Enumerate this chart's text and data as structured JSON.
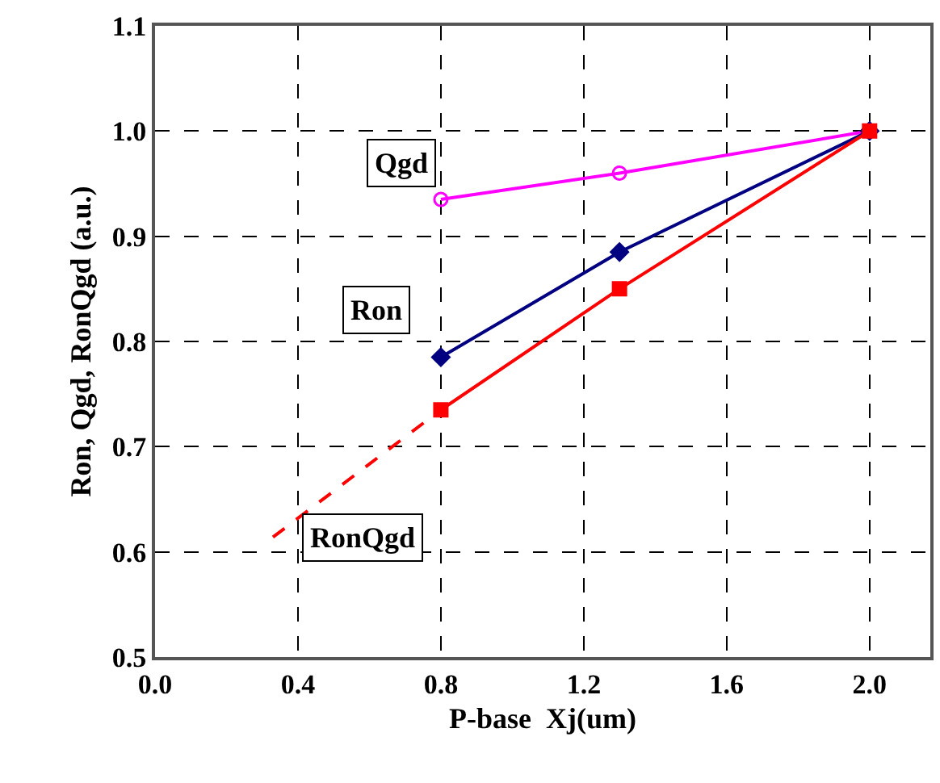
{
  "chart_data": {
    "type": "line",
    "xlabel": "P-base  Xj(um)",
    "ylabel": "Ron, Qgd, RonQgd (a.u.)",
    "xlim": [
      0,
      2.17
    ],
    "xticks": [
      {
        "value": 0,
        "label": "0.0"
      },
      0.4,
      0.8,
      1.2,
      1.6,
      {
        "value": 2,
        "label": "2.0"
      }
    ],
    "ylim": [
      0.5,
      1.1
    ],
    "yticks": [
      0.5,
      0.6,
      0.7,
      0.8,
      0.9,
      {
        "value": 1,
        "label": "1.0"
      },
      1.1
    ],
    "grid": true,
    "legend": false,
    "series": [
      {
        "name": "Qgd",
        "color": "#ff00ff",
        "marker": "circle",
        "x": [
          0.8,
          1.3,
          2.0
        ],
        "values": [
          0.935,
          0.96,
          1.0
        ]
      },
      {
        "name": "Ron",
        "color": "#000080",
        "marker": "diamond",
        "x": [
          0.8,
          1.3,
          2.0
        ],
        "values": [
          0.785,
          0.885,
          1.0
        ]
      },
      {
        "color": "#ff0000",
        "marker": "square",
        "x": [
          0.8,
          1.3,
          2.0
        ],
        "values": [
          0.735,
          0.85,
          1.0
        ]
      },
      {
        "name": "RonQgd",
        "color": "#ff0000",
        "marker": "none",
        "line_style": "dashed",
        "x": [
          0.33,
          0.8
        ],
        "values": [
          0.614,
          0.735
        ]
      }
    ]
  }
}
